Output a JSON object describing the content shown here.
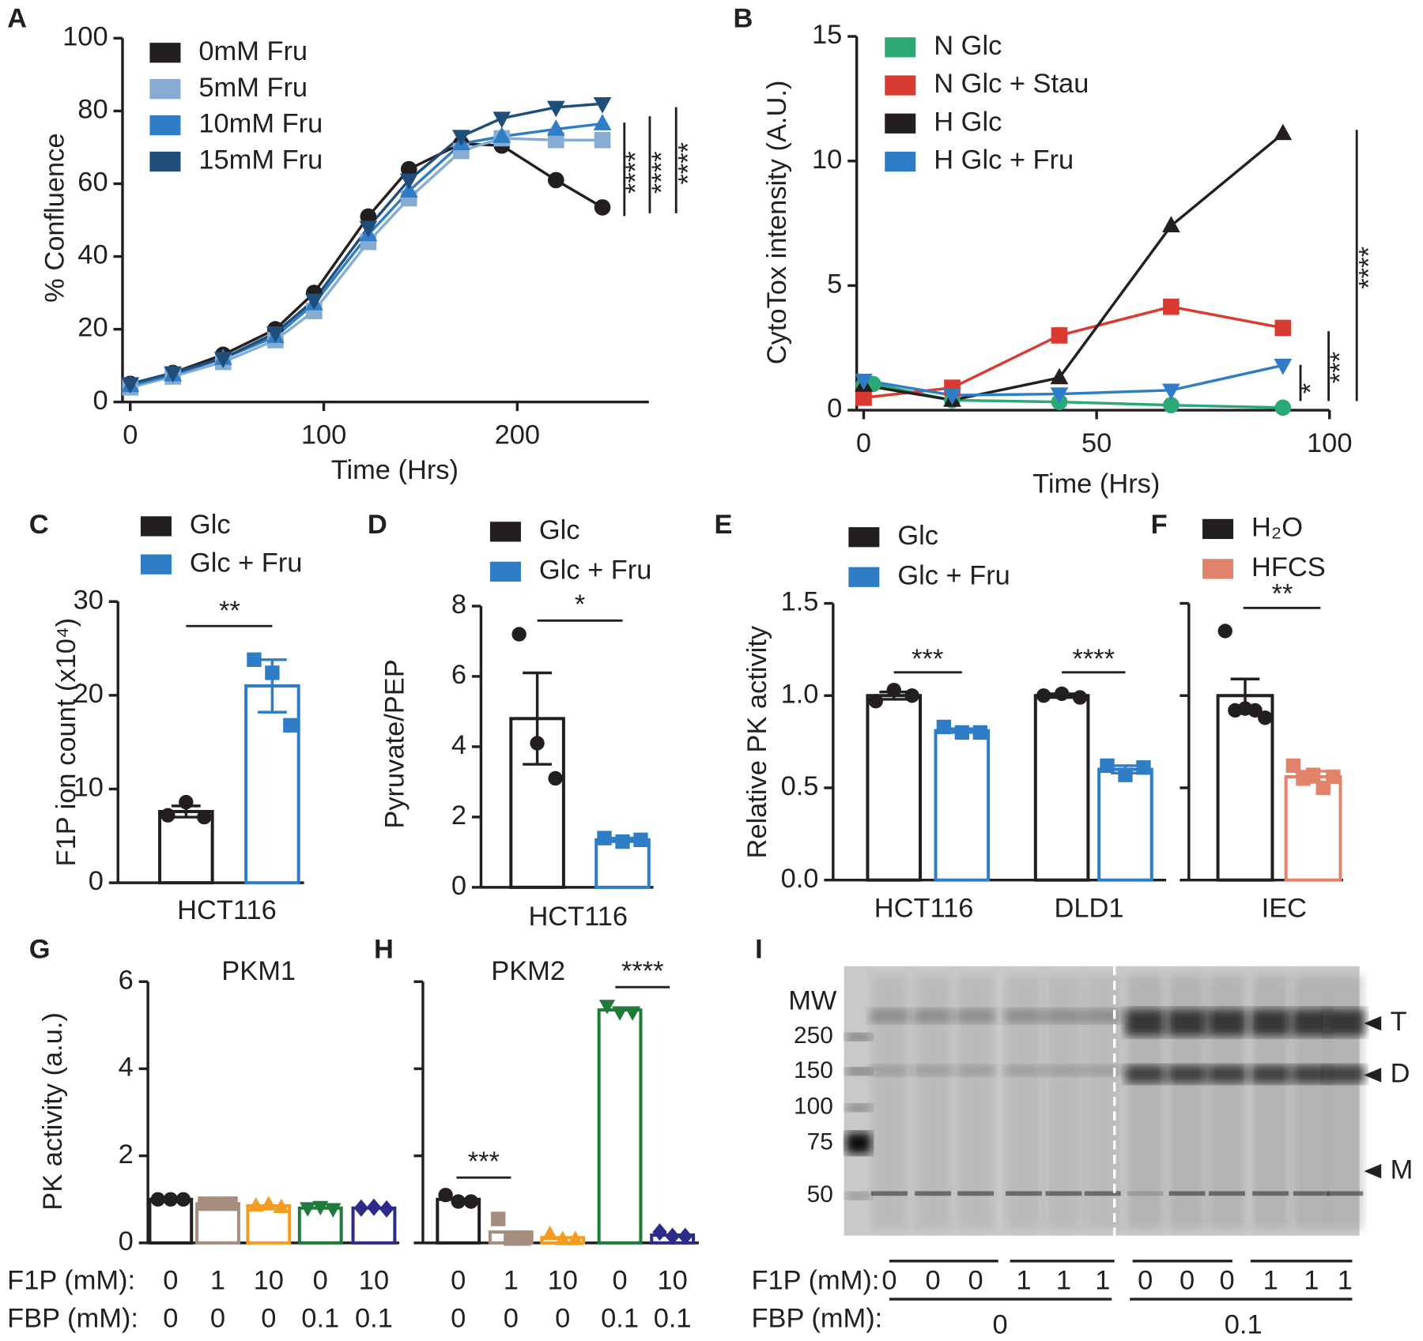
{
  "chart_data": [
    {
      "panel": "A",
      "type": "line",
      "ylabel": "% Confluence",
      "xlabel": "Time (Hrs)",
      "xlim": [
        -4,
        268
      ],
      "ylim": [
        0,
        100
      ],
      "xticks": [
        0,
        100,
        200
      ],
      "yticks": [
        0,
        20,
        40,
        60,
        80,
        100
      ],
      "x": [
        0,
        22,
        48,
        75,
        95,
        123,
        144,
        171,
        192,
        220,
        244
      ],
      "series": [
        {
          "name": "0mM Fru",
          "color": "#231f20",
          "marker": "circle",
          "values": [
            5,
            8,
            13,
            20,
            30,
            51,
            64,
            71,
            70.5,
            61,
            53.5
          ]
        },
        {
          "name": "5mM Fru",
          "color": "#86acd4",
          "marker": "square",
          "values": [
            4,
            7,
            11,
            17,
            25,
            44,
            56,
            69,
            72.5,
            72,
            72
          ]
        },
        {
          "name": "10mM Fru",
          "color": "#2e7dc6",
          "marker": "triangle",
          "values": [
            4.5,
            7.5,
            12,
            18,
            27,
            46,
            58,
            71,
            73,
            75,
            76.5
          ]
        },
        {
          "name": "15mM Fru",
          "color": "#1f4e7a",
          "marker": "triangle-down",
          "values": [
            5,
            8,
            12,
            19,
            28,
            48,
            61,
            73,
            78,
            81,
            82
          ]
        }
      ],
      "annotations": [
        "****",
        "****",
        "****"
      ]
    },
    {
      "panel": "B",
      "type": "line",
      "ylabel": "CytoTox intensity (A.U.)",
      "xlabel": "Time (Hrs)",
      "xlim": [
        -1.5,
        100
      ],
      "ylim": [
        0,
        15
      ],
      "xticks": [
        0,
        50,
        100
      ],
      "yticks": [
        0,
        5,
        10,
        15
      ],
      "series": [
        {
          "name": "N Glc",
          "color": "#2aa876",
          "marker": "circle",
          "x": [
            0,
            2,
            19,
            42,
            66,
            90
          ],
          "values": [
            1.0,
            1.05,
            0.4,
            0.33,
            0.2,
            0.1
          ]
        },
        {
          "name": "N Glc + Stau",
          "color": "#d93a32",
          "marker": "square",
          "x": [
            0,
            19,
            42,
            66,
            90
          ],
          "values": [
            0.5,
            0.9,
            3.0,
            4.15,
            3.3
          ]
        },
        {
          "name": "H Glc",
          "color": "#231f20",
          "marker": "triangle",
          "x": [
            0,
            19,
            42,
            66,
            90
          ],
          "values": [
            1.0,
            0.4,
            1.3,
            7.4,
            11.1
          ]
        },
        {
          "name": "H Glc + Fru",
          "color": "#2e7dc6",
          "marker": "triangle-down",
          "x": [
            0,
            19,
            42,
            66,
            90
          ],
          "values": [
            1.2,
            0.6,
            0.65,
            0.8,
            1.8
          ]
        }
      ],
      "annotations": [
        "****",
        "***",
        "*"
      ]
    },
    {
      "panel": "C",
      "type": "bar",
      "ylabel": "F1P ion count (x10⁴)",
      "categories": [
        "HCT116"
      ],
      "ylim": [
        0,
        30
      ],
      "yticks": [
        0,
        10,
        20,
        30
      ],
      "series": [
        {
          "name": "Glc",
          "color": "#231f20",
          "marker": "circle",
          "values": [
            7.6
          ],
          "errors": [
            0.6
          ],
          "points": [
            [
              7.2,
              8.6,
              7.0
            ]
          ]
        },
        {
          "name": "Glc + Fru",
          "color": "#2e7dc6",
          "marker": "square",
          "values": [
            21
          ],
          "errors": [
            2.8
          ],
          "points": [
            [
              23.8,
              22.4,
              16.8
            ]
          ]
        }
      ],
      "annotations": [
        "**"
      ]
    },
    {
      "panel": "D",
      "type": "bar",
      "ylabel": "Pyruvate/PEP",
      "categories": [
        "HCT116"
      ],
      "ylim": [
        0,
        8
      ],
      "yticks": [
        0,
        2,
        4,
        6,
        8
      ],
      "series": [
        {
          "name": "Glc",
          "color": "#231f20",
          "marker": "circle",
          "values": [
            4.8
          ],
          "errors": [
            1.3
          ],
          "points": [
            [
              7.2,
              4.1,
              3.1
            ]
          ]
        },
        {
          "name": "Glc + Fru",
          "color": "#2e7dc6",
          "marker": "square",
          "values": [
            1.35
          ],
          "errors": [
            0.05
          ],
          "points": [
            [
              1.4,
              1.3,
              1.35
            ]
          ]
        }
      ],
      "annotations": [
        "*"
      ]
    },
    {
      "panel": "E",
      "type": "bar",
      "ylabel": "Relative PK activity",
      "categories": [
        "HCT116",
        "DLD1"
      ],
      "ylim": [
        0,
        1.5
      ],
      "yticks": [
        {
          "value": 0,
          "label": "0.0"
        },
        0.5,
        {
          "value": 1,
          "label": "1.0"
        },
        1.5
      ],
      "series": [
        {
          "name": "Glc",
          "color": "#231f20",
          "marker": "circle",
          "values": [
            1.0,
            1.0
          ],
          "errors": [
            0.02,
            0.01
          ],
          "points": [
            [
              0.97,
              1.03,
              1.0
            ],
            [
              1.0,
              1.01,
              0.99
            ]
          ]
        },
        {
          "name": "Glc + Fru",
          "color": "#2e7dc6",
          "marker": "square",
          "values": [
            0.81,
            0.6
          ],
          "errors": [
            0.01,
            0.02
          ],
          "points": [
            [
              0.83,
              0.8,
              0.8
            ],
            [
              0.62,
              0.57,
              0.61
            ]
          ]
        }
      ],
      "annotations": [
        "***",
        "****"
      ]
    },
    {
      "panel": "F",
      "type": "bar",
      "categories": [
        "IEC"
      ],
      "ylim": [
        0,
        1.5
      ],
      "yticks": [
        0,
        0.5,
        1,
        1.5
      ],
      "tick_labels": false,
      "series": [
        {
          "name": "H₂O",
          "color": "#231f20",
          "marker": "circle",
          "values": [
            1.0
          ],
          "errors": [
            0.09
          ],
          "points": [
            [
              1.35,
              0.92,
              0.93,
              0.92,
              0.88
            ]
          ]
        },
        {
          "name": "HFCS",
          "color": "#e0836a",
          "marker": "square",
          "values": [
            0.56
          ],
          "errors": [
            0.03
          ],
          "points": [
            [
              0.62,
              0.55,
              0.57,
              0.5,
              0.56
            ]
          ]
        }
      ],
      "annotations": [
        "**"
      ]
    },
    {
      "panel": "G",
      "type": "bar",
      "title": "PKM1",
      "ylabel": "PK activity (a.u.)",
      "ylim": [
        0,
        6
      ],
      "yticks": [
        0,
        2,
        4,
        6
      ],
      "conditions": [
        {
          "label": "F1P (mM):",
          "values": [
            "0",
            "1",
            "10",
            "0",
            "10"
          ]
        },
        {
          "label": "FBP (mM):",
          "values": [
            "0",
            "0",
            "0",
            "0.1",
            "0.1"
          ]
        }
      ],
      "values": [
        1.0,
        0.9,
        0.85,
        0.8,
        0.8
      ],
      "colors": [
        "#231f20",
        "#a58d7f",
        "#f39c1f",
        "#1f7a3c",
        "#2b2b8c"
      ],
      "markers": [
        "circle",
        "square",
        "triangle",
        "triangle-down",
        "diamond"
      ],
      "points": [
        [
          1.0,
          1.0,
          1.0
        ],
        [
          0.9,
          0.9,
          0.9
        ],
        [
          0.85,
          0.88,
          0.82
        ],
        [
          0.8,
          0.83,
          0.78
        ],
        [
          0.8,
          0.82,
          0.78
        ]
      ]
    },
    {
      "panel": "H",
      "type": "bar",
      "title": "PKM2",
      "ylim": [
        0,
        6
      ],
      "yticks": [
        0,
        2,
        4,
        6
      ],
      "tick_labels": false,
      "conditions": [
        {
          "label": "F1P (mM):",
          "values": [
            "0",
            "1",
            "10",
            "0",
            "10"
          ]
        },
        {
          "label": "FBP (mM):",
          "values": [
            "0",
            "0",
            "0",
            "0.1",
            "0.1"
          ]
        }
      ],
      "values": [
        1.0,
        0.25,
        0.12,
        5.35,
        0.18
      ],
      "colors": [
        "#231f20",
        "#a58d7f",
        "#f39c1f",
        "#1f7a3c",
        "#2b2b8c"
      ],
      "markers": [
        "circle",
        "square",
        "triangle",
        "triangle-down",
        "diamond"
      ],
      "points": [
        [
          1.1,
          0.95,
          0.95
        ],
        [
          0.55,
          0.1,
          0.1
        ],
        [
          0.2,
          0.08,
          0.08
        ],
        [
          5.45,
          5.3,
          5.3
        ],
        [
          0.25,
          0.15,
          0.15
        ]
      ],
      "annotations": [
        "***",
        "****"
      ]
    }
  ],
  "gel": {
    "panel": "I",
    "mw_label": "MW",
    "ladder": [
      "250",
      "150",
      "100",
      "75",
      "50"
    ],
    "bands": [
      "T",
      "D",
      "M"
    ],
    "f1p": {
      "label": "F1P (mM):",
      "values": [
        "0",
        "0",
        "0",
        "1",
        "1",
        "1",
        "0",
        "0",
        "0",
        "1",
        "1",
        "1"
      ]
    },
    "fbp": {
      "label": "FBP (mM):",
      "groups": [
        "0",
        "0.1"
      ]
    }
  }
}
